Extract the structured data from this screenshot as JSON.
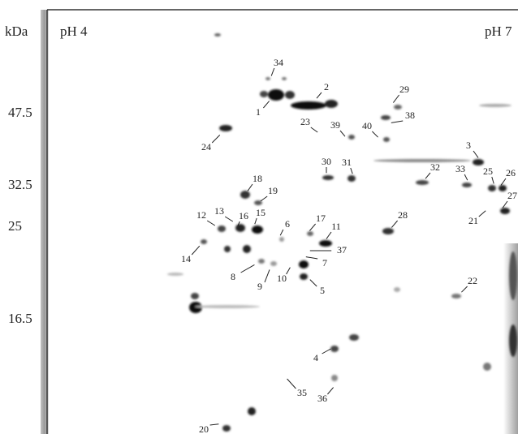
{
  "gel": {
    "unit": "kDa",
    "ph_left": "pH 4",
    "ph_right": "pH 7",
    "masses": [
      "47.5",
      "32.5",
      "25",
      "16.5"
    ],
    "spots": [
      "34",
      "2",
      "29",
      "1",
      "38",
      "23",
      "39",
      "40",
      "24",
      "3",
      "30",
      "31",
      "32",
      "33",
      "25",
      "26",
      "27",
      "18",
      "19",
      "12",
      "13",
      "16",
      "15",
      "6",
      "17",
      "11",
      "28",
      "21",
      "37",
      "14",
      "8",
      "7",
      "10",
      "9",
      "5",
      "22",
      "4",
      "35",
      "36",
      "20"
    ]
  }
}
